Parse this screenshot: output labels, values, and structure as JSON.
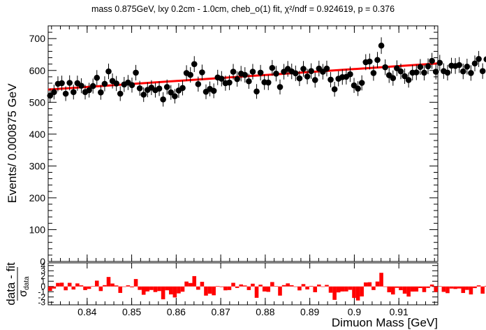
{
  "title": "mass 0.875GeV, lxy 0.2cm - 1.0cm, cheb_o(1) fit, χ²/ndf = 0.924619, p = 0.376",
  "colors": {
    "data": "#000000",
    "fit": "#ff0000",
    "residual": "#ff0000",
    "axis": "#000000"
  },
  "chart_data": [
    {
      "type": "scatter",
      "name": "main-panel",
      "title": "mass 0.875GeV, lxy 0.2cm - 1.0cm, cheb_o(1) fit, χ²/ndf = 0.924619, p = 0.376",
      "xlabel": "Dimuon Mass [GeV]",
      "ylabel": "Events/ 0.000875 GeV",
      "xlim": [
        0.83125,
        0.91875
      ],
      "ylim": [
        0,
        740
      ],
      "xticks": [
        0.84,
        0.85,
        0.86,
        0.87,
        0.88,
        0.89,
        0.9,
        0.91
      ],
      "xtick_labels": [
        "0.84",
        "0.85",
        "0.86",
        "0.87",
        "0.88",
        "0.89",
        "0.9",
        "0.91"
      ],
      "yticks": [
        0,
        100,
        200,
        300,
        400,
        500,
        600,
        700
      ],
      "ytick_labels": [
        "0",
        "100",
        "200",
        "300",
        "400",
        "500",
        "600",
        "700"
      ],
      "bin_width": 0.000875,
      "x_start": 0.83125,
      "counts": [
        521,
        532,
        558,
        560,
        527,
        561,
        532,
        560,
        552,
        532,
        538,
        551,
        577,
        531,
        558,
        597,
        567,
        559,
        527,
        556,
        562,
        554,
        593,
        544,
        524,
        539,
        546,
        538,
        543,
        509,
        548,
        531,
        519,
        537,
        545,
        592,
        586,
        620,
        557,
        594,
        533,
        542,
        536,
        578,
        574,
        560,
        562,
        596,
        573,
        590,
        586,
        566,
        596,
        534,
        593,
        563,
        562,
        608,
        590,
        548,
        596,
        605,
        597,
        591,
        575,
        605,
        581,
        598,
        570,
        606,
        596,
        606,
        571,
        541,
        574,
        579,
        580,
        588,
        553,
        543,
        561,
        626,
        628,
        592,
        633,
        678,
        610,
        585,
        576,
        607,
        597,
        582,
        570,
        593,
        594,
        611,
        593,
        613,
        630,
        596,
        624,
        598,
        593,
        615,
        614,
        617,
        597,
        612,
        592,
        622,
        636,
        598,
        635,
        620
      ],
      "fit": {
        "type": "line",
        "start": [
          0.83125,
          540
        ],
        "end": [
          0.91875,
          622
        ],
        "label": "cheb_o(1) fit"
      }
    },
    {
      "type": "bar",
      "name": "residual-panel",
      "ylabel": "data - fit / σ_data",
      "ylabel_numerator": "data - fit",
      "ylabel_denominator": "σ",
      "ylabel_denominator_sub": "data",
      "xlim": [
        0.83125,
        0.91875
      ],
      "ylim": [
        -3.5,
        4.5
      ],
      "yticks": [
        -3,
        -2,
        -1,
        0,
        1,
        2,
        3,
        4
      ],
      "ytick_labels": [
        "-3",
        "-2",
        "-1",
        "0",
        "1",
        "2",
        "3",
        "4"
      ]
    }
  ]
}
